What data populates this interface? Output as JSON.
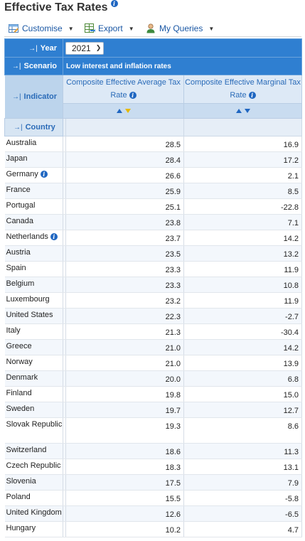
{
  "page_title": "Effective Tax Rates",
  "toolbar": {
    "customise": "Customise",
    "export": "Export",
    "my_queries": "My Queries"
  },
  "filters": {
    "year_label": "Year",
    "year_value": "2021",
    "scenario_label": "Scenario",
    "scenario_value": "Low interest and inflation rates",
    "indicator_label": "Indicator",
    "country_label": "Country"
  },
  "columns": [
    {
      "label": "Composite Effective Average Tax Rate",
      "sort": "descending"
    },
    {
      "label": "Composite Effective Marginal Tax Rate",
      "sort": "none"
    }
  ],
  "rows": [
    {
      "country": "Australia",
      "avg": "28.5",
      "marg": "16.9",
      "info": false
    },
    {
      "country": "Japan",
      "avg": "28.4",
      "marg": "17.2",
      "info": false
    },
    {
      "country": "Germany",
      "avg": "26.6",
      "marg": "2.1",
      "info": true
    },
    {
      "country": "France",
      "avg": "25.9",
      "marg": "8.5",
      "info": false
    },
    {
      "country": "Portugal",
      "avg": "25.1",
      "marg": "-22.8",
      "info": false
    },
    {
      "country": "Canada",
      "avg": "23.8",
      "marg": "7.1",
      "info": false
    },
    {
      "country": "Netherlands",
      "avg": "23.7",
      "marg": "14.2",
      "info": true
    },
    {
      "country": "Austria",
      "avg": "23.5",
      "marg": "13.2",
      "info": false
    },
    {
      "country": "Spain",
      "avg": "23.3",
      "marg": "11.9",
      "info": false
    },
    {
      "country": "Belgium",
      "avg": "23.3",
      "marg": "10.8",
      "info": false
    },
    {
      "country": "Luxembourg",
      "avg": "23.2",
      "marg": "11.9",
      "info": false
    },
    {
      "country": "United States",
      "avg": "22.3",
      "marg": "-2.7",
      "info": false
    },
    {
      "country": "Italy",
      "avg": "21.3",
      "marg": "-30.4",
      "info": false
    },
    {
      "country": "Greece",
      "avg": "21.0",
      "marg": "14.2",
      "info": false
    },
    {
      "country": "Norway",
      "avg": "21.0",
      "marg": "13.9",
      "info": false
    },
    {
      "country": "Denmark",
      "avg": "20.0",
      "marg": "6.8",
      "info": false
    },
    {
      "country": "Finland",
      "avg": "19.8",
      "marg": "15.0",
      "info": false
    },
    {
      "country": "Sweden",
      "avg": "19.7",
      "marg": "12.7",
      "info": false
    },
    {
      "country": "Slovak Republic",
      "avg": "19.3",
      "marg": "8.6",
      "info": false
    },
    {
      "country": "Switzerland",
      "avg": "18.6",
      "marg": "11.3",
      "info": false
    },
    {
      "country": "Czech Republic",
      "avg": "18.3",
      "marg": "13.1",
      "info": false
    },
    {
      "country": "Slovenia",
      "avg": "17.5",
      "marg": "7.9",
      "info": false
    },
    {
      "country": "Poland",
      "avg": "15.5",
      "marg": "-5.8",
      "info": false
    },
    {
      "country": "United Kingdom",
      "avg": "12.6",
      "marg": "-6.5",
      "info": false
    },
    {
      "country": "Hungary",
      "avg": "10.2",
      "marg": "4.7",
      "info": false
    }
  ],
  "colors": {
    "header_blue": "#2f7fd1",
    "link_blue": "#1a57a4",
    "info_blue": "#1f66c1",
    "sort_active": "#e6b800"
  },
  "icons": {
    "title_info": "info-icon",
    "customise": "customise-table-icon",
    "export": "export-spreadsheet-icon",
    "my_queries": "user-icon",
    "dimension_arrow": "arrow-to-right-icon"
  }
}
